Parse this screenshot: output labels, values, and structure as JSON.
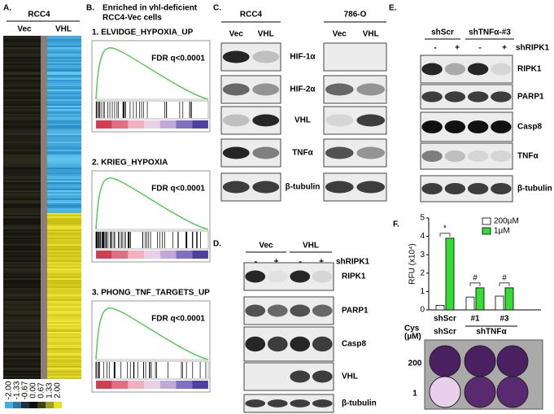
{
  "panel_a": {
    "label": "A.",
    "cell_line": "RCC4",
    "columns": [
      "Vec",
      "VHL"
    ],
    "scale": [
      "-2.00",
      "-1.33",
      "-0.67",
      "0.00",
      "0.67",
      "1.33",
      "2.00"
    ]
  },
  "panel_b": {
    "label": "B.",
    "heading": [
      "Enriched in vhl-deficient",
      "RCC4-Vec cells"
    ],
    "plots": [
      {
        "title": "1. ELVIDGE_HYPOXIA_UP",
        "fdr": "FDR q<0.0001"
      },
      {
        "title": "2. KRIEG_HYPOXIA",
        "fdr": "FDR q<0.0001"
      },
      {
        "title": "3. PHONG_TNF_TARGETS_UP",
        "fdr": "FDR q<0.0001"
      }
    ]
  },
  "panel_c": {
    "label": "C.",
    "groups": [
      {
        "name": "RCC4",
        "lanes": [
          "Vec",
          "VHL"
        ]
      },
      {
        "name": "786-O",
        "lanes": [
          "Vec",
          "VHL"
        ]
      }
    ],
    "rows": [
      "HIF-1α",
      "HIF-2α",
      "VHL",
      "TNFα",
      "β-tubulin"
    ]
  },
  "panel_d": {
    "label": "D.",
    "groups": [
      {
        "name": "Vec",
        "lanes": [
          "-",
          "+"
        ]
      },
      {
        "name": "VHL",
        "lanes": [
          "-",
          "+"
        ]
      }
    ],
    "treatment": "shRIPK1",
    "rows": [
      "RIPK1",
      "PARP1",
      "Casp8",
      "VHL",
      "β-tubulin"
    ]
  },
  "panel_e": {
    "label": "E.",
    "groups": [
      {
        "name": "shScr",
        "lanes": [
          "-",
          "+"
        ]
      },
      {
        "name": "shTNFα-#3",
        "lanes": [
          "-",
          "+"
        ]
      }
    ],
    "treatment": "shRIPK1",
    "rows": [
      "RIPK1",
      "PARP1",
      "Casp8",
      "TNFα",
      "β-tubulin"
    ]
  },
  "panel_f": {
    "label": "F.",
    "chart": {
      "type": "bar",
      "ylabel": "RFU (x10⁴)",
      "categories": [
        "shScr",
        "#1",
        "#3"
      ],
      "series": [
        {
          "name": "200µM",
          "color": "#ffffff",
          "values": [
            0.25,
            0.7,
            0.75
          ]
        },
        {
          "name": "1µM",
          "color": "#33dd33",
          "values": [
            3.9,
            1.2,
            1.2
          ]
        }
      ],
      "ylim": [
        0,
        5
      ],
      "yticks": [
        0,
        1,
        2,
        3,
        4,
        5
      ],
      "annotations": [
        "*",
        "#",
        "#"
      ]
    },
    "plate": {
      "cys_label": [
        "Cys",
        "(µM)"
      ],
      "group_labels": [
        "shScr",
        "shTNFα"
      ],
      "row_labels": [
        "200",
        "1"
      ]
    }
  }
}
